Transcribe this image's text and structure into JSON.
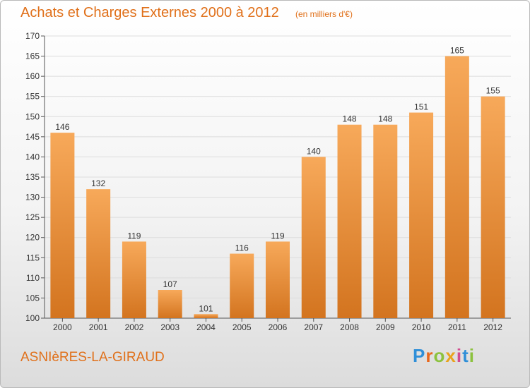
{
  "header": {
    "title": "Achats et Charges Externes 2000 à 2012",
    "subtitle": "(en milliers d'€)"
  },
  "footer": {
    "commune": "ASNIèRES-LA-GIRAUD",
    "logo_text": "Proxiti"
  },
  "colors": {
    "accent": "#e0701a",
    "bar_light": "#f7a95a",
    "bar_dark": "#d3741f"
  },
  "chart_data": {
    "type": "bar",
    "categories": [
      "2000",
      "2001",
      "2002",
      "2003",
      "2004",
      "2005",
      "2006",
      "2007",
      "2008",
      "2009",
      "2010",
      "2011",
      "2012"
    ],
    "values": [
      146,
      132,
      119,
      107,
      101,
      116,
      119,
      140,
      148,
      148,
      151,
      165,
      155
    ],
    "title": "Achats et Charges Externes 2000 à 2012",
    "subtitle": "(en milliers d'€)",
    "ylim": [
      100,
      170
    ],
    "yticks": [
      100,
      105,
      110,
      115,
      120,
      125,
      130,
      135,
      140,
      145,
      150,
      155,
      160,
      165,
      170
    ],
    "grid": true,
    "legend": "none"
  }
}
